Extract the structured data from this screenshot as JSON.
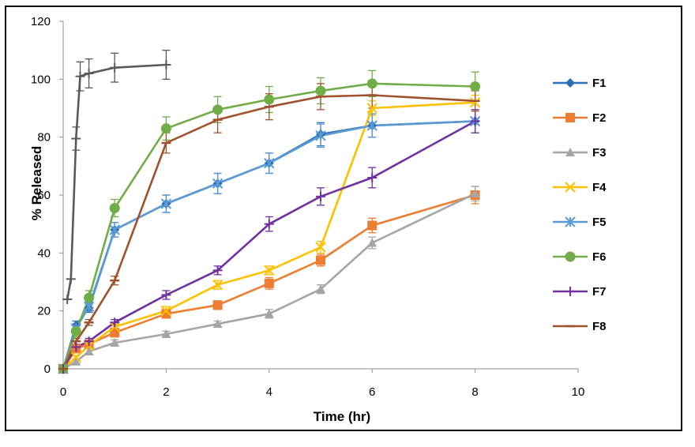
{
  "chart_data": {
    "type": "line",
    "title": "",
    "xlabel": "Time (hr)",
    "ylabel": "% Released",
    "xlim": [
      0,
      10
    ],
    "ylim": [
      0,
      120
    ],
    "xticks": [
      0,
      2,
      4,
      6,
      8,
      10
    ],
    "yticks": [
      0,
      20,
      40,
      60,
      80,
      100,
      120
    ],
    "grid": false,
    "legend_position": "right",
    "series": [
      {
        "name": "F1",
        "color": "#2e6fb7",
        "marker": "diamond",
        "x": [
          0,
          0.25,
          0.5,
          1,
          2,
          3,
          4,
          5,
          6,
          8
        ],
        "y": [
          0,
          15,
          21,
          48,
          57,
          64,
          71,
          81,
          84,
          85.5
        ],
        "err": [
          0,
          1.5,
          1.5,
          2.5,
          3,
          3.5,
          3.5,
          4,
          4,
          4
        ]
      },
      {
        "name": "F2",
        "color": "#ed7d31",
        "marker": "square",
        "x": [
          0,
          0.25,
          0.5,
          1,
          2,
          3,
          4,
          5,
          6,
          8
        ],
        "y": [
          0,
          7,
          8.5,
          12.5,
          19,
          22,
          29.5,
          37.5,
          49.5,
          60
        ],
        "err": [
          0,
          1,
          1,
          1.5,
          1.5,
          1.5,
          2,
          2,
          2.5,
          3
        ]
      },
      {
        "name": "F3",
        "color": "#a5a5a5",
        "marker": "triangle",
        "x": [
          0,
          0.25,
          0.5,
          1,
          2,
          3,
          4,
          5,
          6,
          8
        ],
        "y": [
          0,
          2.5,
          6,
          9,
          12,
          15.5,
          19,
          27.5,
          43.5,
          60.5
        ],
        "err": [
          0,
          0.5,
          1,
          1,
          1,
          1,
          1.5,
          1.5,
          2,
          2.5
        ]
      },
      {
        "name": "F4",
        "color": "#ffc000",
        "marker": "x",
        "x": [
          0,
          0.25,
          0.5,
          1,
          2,
          3,
          4,
          5,
          6,
          8
        ],
        "y": [
          0,
          4,
          8,
          14.5,
          20,
          29,
          34,
          42,
          90,
          92
        ],
        "err": [
          0,
          0.5,
          1,
          1,
          1.5,
          1.5,
          1.5,
          2,
          2.5,
          2.5
        ]
      },
      {
        "name": "F5",
        "color": "#5b9bd5",
        "marker": "star",
        "x": [
          0,
          0.25,
          0.5,
          1,
          2,
          3,
          4,
          5,
          6,
          8
        ],
        "y": [
          0,
          14,
          21.5,
          48,
          57,
          64,
          71,
          80.5,
          84,
          85.5
        ],
        "err": [
          0,
          1.5,
          1.5,
          2.5,
          3,
          3.5,
          3.5,
          4,
          4,
          4
        ]
      },
      {
        "name": "F6",
        "color": "#70ad47",
        "marker": "circle",
        "x": [
          0,
          0.25,
          0.5,
          1,
          2,
          3,
          4,
          5,
          6,
          8
        ],
        "y": [
          0,
          13,
          24.5,
          55.5,
          83,
          89.5,
          93,
          96,
          98.5,
          97.5
        ],
        "err": [
          0,
          2,
          2.5,
          3,
          4,
          4.5,
          4.5,
          4.5,
          4.5,
          5
        ]
      },
      {
        "name": "F7",
        "color": "#7030a0",
        "marker": "plus",
        "x": [
          0,
          0.25,
          0.5,
          1,
          2,
          3,
          4,
          5,
          6,
          8
        ],
        "y": [
          0,
          7.5,
          9.5,
          16,
          25.5,
          34,
          50,
          59.5,
          66,
          85.5
        ],
        "err": [
          0,
          1,
          1,
          1,
          1.5,
          1.5,
          2.5,
          3,
          3.5,
          4
        ]
      },
      {
        "name": "F8",
        "color": "#a0522d",
        "marker": "dash",
        "x": [
          0,
          0.25,
          0.5,
          1,
          2,
          3,
          4,
          5,
          6,
          8
        ],
        "y": [
          0,
          9.5,
          16,
          30.5,
          78,
          86,
          90.5,
          94,
          94.5,
          92.5
        ],
        "err": [
          0,
          1,
          1,
          1.5,
          3.5,
          4.5,
          4.5,
          4.5,
          4.5,
          3.5
        ]
      },
      {
        "name": "",
        "color": "#595959",
        "marker": "plus",
        "x": [
          0.08,
          0.15,
          0.25,
          0.33,
          0.5,
          1,
          2
        ],
        "y": [
          24,
          31,
          79.5,
          101,
          102,
          104,
          105
        ],
        "err": [
          0,
          0,
          4,
          5,
          5,
          5,
          5
        ]
      }
    ]
  }
}
